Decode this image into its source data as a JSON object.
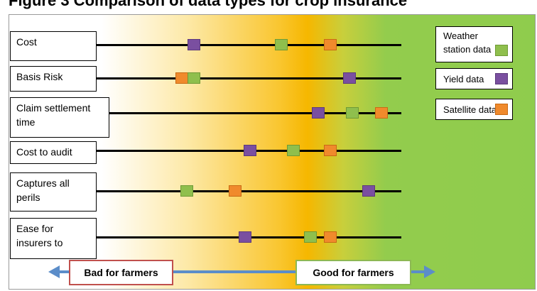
{
  "title": "Figure 3 Comparison of data types for crop insurance",
  "rows": [
    {
      "label": "Cost",
      "markers": {
        "yield": 0.22,
        "weather": 0.58,
        "satellite": 0.78
      }
    },
    {
      "label": "Basis Risk",
      "markers": {
        "satellite": 0.17,
        "weather": 0.22,
        "yield": 0.86
      }
    },
    {
      "label": "Claim settlement time",
      "markers": {
        "yield": 0.73,
        "weather": 0.87,
        "satellite": 0.99
      }
    },
    {
      "label": "Cost to audit",
      "markers": {
        "yield": 0.45,
        "weather": 0.63,
        "satellite": 0.78
      }
    },
    {
      "label": "Captures all perils",
      "markers": {
        "weather": 0.19,
        "satellite": 0.39,
        "yield": 0.94
      }
    },
    {
      "label": "Ease for insurers to",
      "markers": {
        "yield": 0.43,
        "weather": 0.7,
        "satellite": 0.78
      }
    }
  ],
  "legend": [
    {
      "key": "weather",
      "label": "Weather station data",
      "color": "#8fbf4d"
    },
    {
      "key": "yield",
      "label": "Yield data",
      "color": "#7a4fa0"
    },
    {
      "key": "satellite",
      "label": "Satellite data",
      "color": "#f08a2c"
    }
  ],
  "scale": {
    "bad_label": "Bad for farmers",
    "good_label": "Good for farmers"
  }
}
